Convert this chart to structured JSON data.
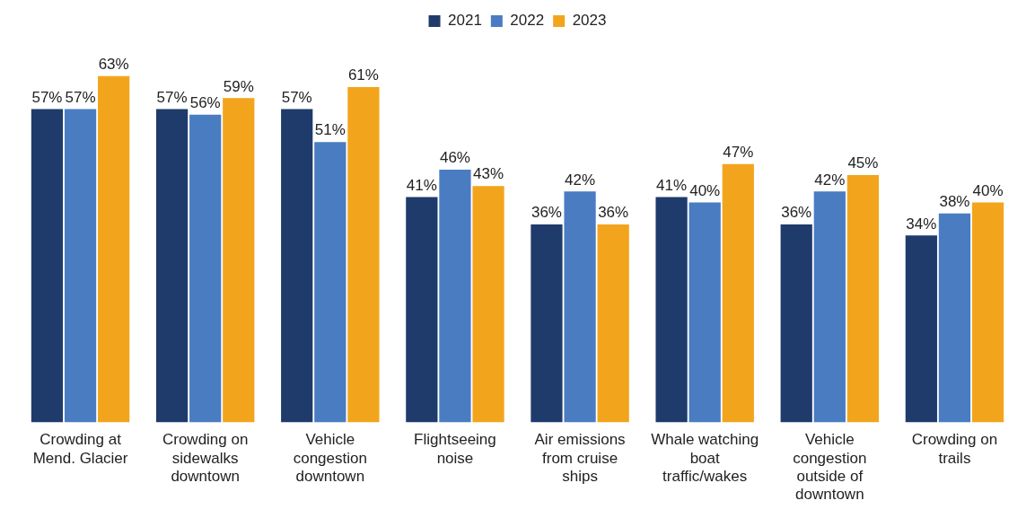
{
  "chart_data": {
    "type": "bar",
    "categories": [
      "Crowding at Mend. Glacier",
      "Crowding on sidewalks downtown",
      "Vehicle congestion downtown",
      "Flightseeing noise",
      "Air emissions from cruise ships",
      "Whale watching boat traffic/wakes",
      "Vehicle congestion outside of downtown",
      "Crowding on trails"
    ],
    "series": [
      {
        "name": "2021",
        "color": "#1f3b6b",
        "values": [
          57,
          57,
          57,
          41,
          36,
          41,
          36,
          34
        ],
        "value_labels": [
          "57%",
          "57%",
          "57%",
          "41%",
          "36%",
          "41%",
          "36%",
          "34%"
        ]
      },
      {
        "name": "2022",
        "color": "#4a7cc2",
        "values": [
          57,
          56,
          51,
          46,
          42,
          40,
          42,
          38
        ],
        "value_labels": [
          "57%",
          "56%",
          "51%",
          "46%",
          "42%",
          "40%",
          "42%",
          "38%"
        ]
      },
      {
        "name": "2023",
        "color": "#f2a51c",
        "values": [
          63,
          59,
          61,
          43,
          36,
          47,
          45,
          40
        ],
        "value_labels": [
          "63%",
          "59%",
          "61%",
          "43%",
          "36%",
          "47%",
          "45%",
          "40%"
        ]
      }
    ],
    "legend": "top",
    "grid": false
  }
}
